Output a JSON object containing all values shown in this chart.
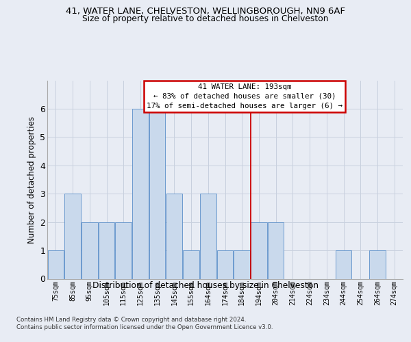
{
  "title1": "41, WATER LANE, CHELVESTON, WELLINGBOROUGH, NN9 6AF",
  "title2": "Size of property relative to detached houses in Chelveston",
  "xlabel": "Distribution of detached houses by size in Chelveston",
  "ylabel": "Number of detached properties",
  "categories": [
    "75sqm",
    "85sqm",
    "95sqm",
    "105sqm",
    "115sqm",
    "125sqm",
    "135sqm",
    "145sqm",
    "155sqm",
    "164sqm",
    "174sqm",
    "184sqm",
    "194sqm",
    "204sqm",
    "214sqm",
    "224sqm",
    "234sqm",
    "244sqm",
    "254sqm",
    "264sqm",
    "274sqm"
  ],
  "values": [
    1,
    3,
    2,
    2,
    2,
    6,
    6,
    3,
    1,
    3,
    1,
    1,
    2,
    2,
    0,
    0,
    0,
    1,
    0,
    1,
    0
  ],
  "bar_color": "#c9d9ec",
  "bar_edge_color": "#5b8fc9",
  "vline_position": 11.5,
  "vline_color": "#cc0000",
  "annotation_line1": "  41 WATER LANE: 193sqm  ",
  "annotation_line2": "← 83% of detached houses are smaller (30)",
  "annotation_line3": "17% of semi-detached houses are larger (6) →",
  "annotation_box_color": "#ffffff",
  "annotation_box_edge": "#cc0000",
  "grid_color": "#c8d0de",
  "background_color": "#e8ecf4",
  "ylim": [
    0,
    7
  ],
  "yticks": [
    0,
    1,
    2,
    3,
    4,
    5,
    6
  ],
  "footnote1": "Contains HM Land Registry data © Crown copyright and database right 2024.",
  "footnote2": "Contains public sector information licensed under the Open Government Licence v3.0."
}
